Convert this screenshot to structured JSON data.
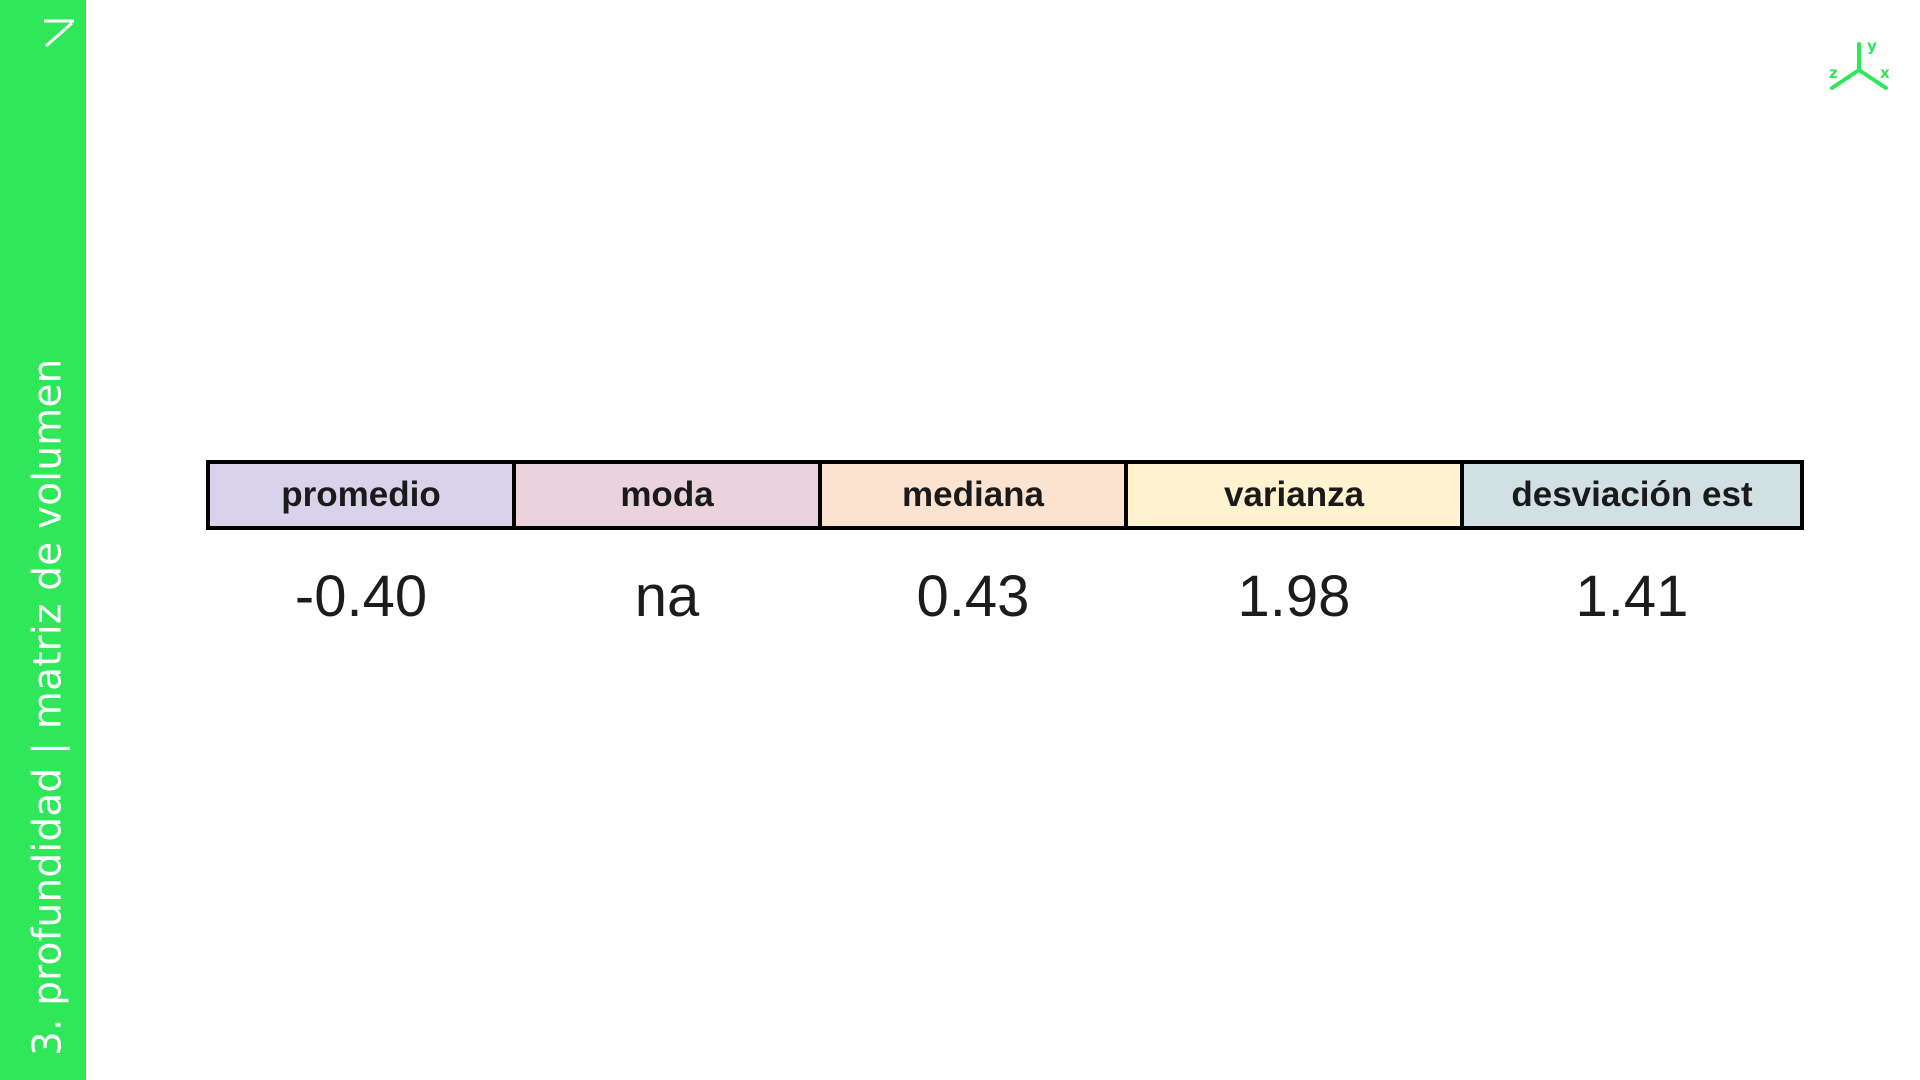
{
  "sidebar": {
    "title": "3. profundidad | matriz de volumen"
  },
  "colors": {
    "brand_green": "#2ee85a",
    "header_promedio": "#d8d2ea",
    "header_moda": "#ead3dc",
    "header_mediana": "#fbe3cf",
    "header_varianza": "#fff2cf",
    "header_desviacion": "#d1e0e3"
  },
  "logo": {
    "axis_y": "y",
    "axis_z": "z",
    "axis_x": "x"
  },
  "stats": {
    "headers": [
      "promedio",
      "moda",
      "mediana",
      "varianza",
      "desviación est"
    ],
    "values": [
      "-0.40",
      "na",
      "0.43",
      "1.98",
      "1.41"
    ]
  }
}
